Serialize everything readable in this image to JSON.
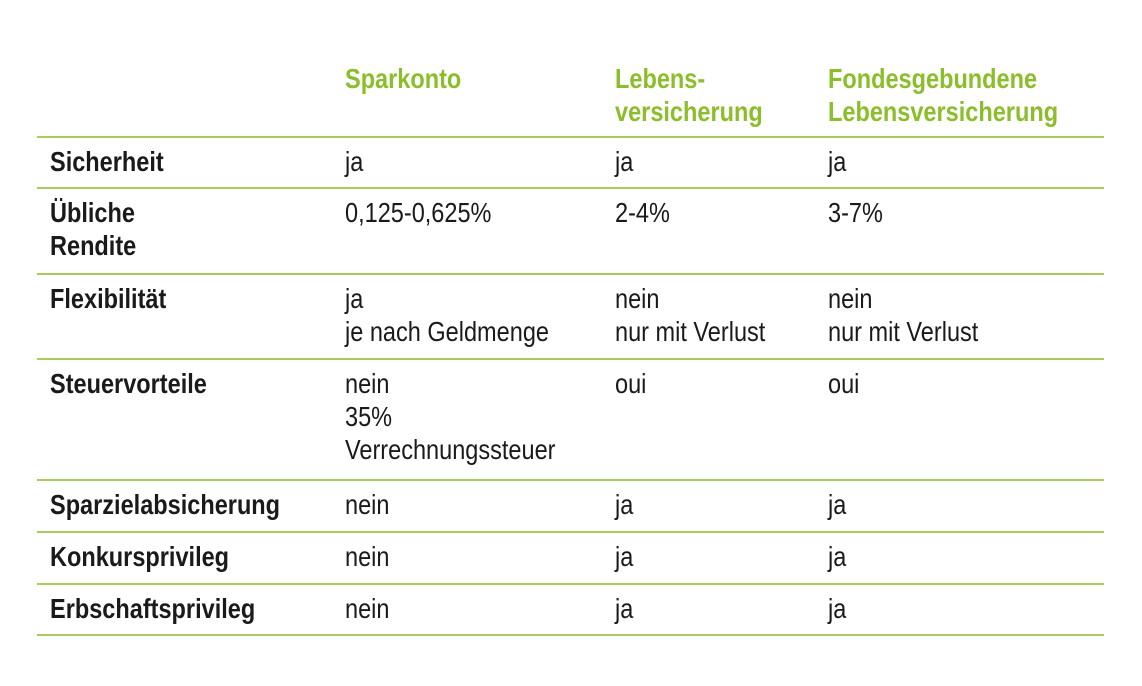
{
  "header": {
    "columns": [
      [
        "Sparkonto"
      ],
      [
        "Lebens-",
        "versicherung"
      ],
      [
        "Fondesgebundene",
        "Lebensversicherung"
      ]
    ]
  },
  "rows": [
    {
      "label": [
        "Sicherheit"
      ],
      "values": [
        [
          "ja"
        ],
        [
          "ja"
        ],
        [
          "ja"
        ]
      ]
    },
    {
      "label": [
        "Übliche",
        "Rendite"
      ],
      "values": [
        [
          "0,125-0,625%"
        ],
        [
          "2-4%"
        ],
        [
          "3-7%"
        ]
      ]
    },
    {
      "label": [
        "Flexibilität"
      ],
      "values": [
        [
          "ja",
          "je nach Geldmenge"
        ],
        [
          "nein",
          "nur mit Verlust"
        ],
        [
          "nein",
          "nur mit Verlust"
        ]
      ]
    },
    {
      "label": [
        "Steuervorteile"
      ],
      "values": [
        [
          "nein",
          "35%",
          "Verrechnungssteuer"
        ],
        [
          "oui"
        ],
        [
          "oui"
        ]
      ]
    },
    {
      "label": [
        "Sparzielabsicherung"
      ],
      "values": [
        [
          "nein"
        ],
        [
          "ja"
        ],
        [
          "ja"
        ]
      ]
    },
    {
      "label": [
        "Konkursprivileg"
      ],
      "values": [
        [
          "nein"
        ],
        [
          "ja"
        ],
        [
          "ja"
        ]
      ]
    },
    {
      "label": [
        "Erbschaftsprivileg"
      ],
      "values": [
        [
          "nein"
        ],
        [
          "ja"
        ],
        [
          "ja"
        ]
      ]
    }
  ],
  "colors": {
    "header_text": "#8cbd2a",
    "rule": "#a9cb5c",
    "text": "#1a1a1a"
  }
}
